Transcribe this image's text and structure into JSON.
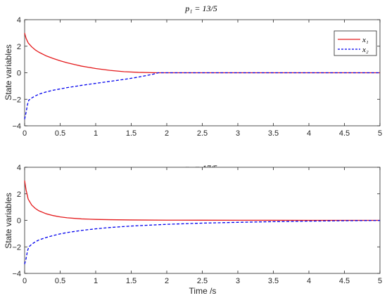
{
  "chart_data": [
    {
      "type": "line",
      "title": "p₁ = 13/5",
      "xlabel": "",
      "ylabel": "State variables",
      "xlim": [
        0,
        5
      ],
      "ylim": [
        -4,
        4
      ],
      "xticks": [
        "0",
        "0.5",
        "1",
        "1.5",
        "2",
        "2.5",
        "3",
        "3.5",
        "4",
        "4.5",
        "5"
      ],
      "yticks": [
        "-4",
        "-2",
        "0",
        "2",
        "4"
      ],
      "grid": false,
      "legend": {
        "position": "top-right",
        "entries": [
          "x₁",
          "x₂"
        ]
      },
      "series": [
        {
          "name": "x₁",
          "color": "#e41a1c",
          "dash": "solid",
          "x": [
            0,
            0.02,
            0.05,
            0.1,
            0.15,
            0.2,
            0.3,
            0.4,
            0.5,
            0.6,
            0.7,
            0.8,
            1.0,
            1.2,
            1.4,
            1.6,
            1.8,
            1.88,
            2.0,
            3.0,
            4.0,
            5.0
          ],
          "y": [
            3.0,
            2.6,
            2.25,
            1.95,
            1.72,
            1.55,
            1.28,
            1.08,
            0.9,
            0.75,
            0.62,
            0.5,
            0.32,
            0.18,
            0.08,
            0.03,
            0.005,
            0.0,
            0.0,
            0.0,
            0.0,
            0.0
          ]
        },
        {
          "name": "x₂",
          "color": "#0000ee",
          "dash": "dashed",
          "x": [
            0,
            0.02,
            0.04,
            0.06,
            0.08,
            0.1,
            0.15,
            0.2,
            0.3,
            0.4,
            0.5,
            0.6,
            0.8,
            1.0,
            1.2,
            1.4,
            1.6,
            1.8,
            1.88,
            2.0,
            3.0,
            4.0,
            5.0
          ],
          "y": [
            -3.5,
            -3.0,
            -2.4,
            -2.05,
            -2.0,
            -1.9,
            -1.75,
            -1.62,
            -1.45,
            -1.32,
            -1.22,
            -1.12,
            -0.95,
            -0.8,
            -0.65,
            -0.5,
            -0.33,
            -0.12,
            0.0,
            0.0,
            0.0,
            0.0,
            0.0
          ]
        }
      ]
    },
    {
      "type": "line",
      "title": "p₁ = 17/5",
      "xlabel": "Time /s",
      "ylabel": "State variables",
      "xlim": [
        0,
        5
      ],
      "ylim": [
        -4,
        4
      ],
      "xticks": [
        "0",
        "0.5",
        "1",
        "1.5",
        "2",
        "2.5",
        "3",
        "3.5",
        "4",
        "4.5",
        "5"
      ],
      "yticks": [
        "-4",
        "-2",
        "0",
        "2",
        "4"
      ],
      "grid": false,
      "series": [
        {
          "name": "x₁",
          "color": "#e41a1c",
          "dash": "solid",
          "x": [
            0,
            0.02,
            0.05,
            0.1,
            0.15,
            0.2,
            0.3,
            0.4,
            0.5,
            0.6,
            0.8,
            1.0,
            1.2,
            1.5,
            2.0,
            2.5,
            3.0,
            4.0,
            5.0
          ],
          "y": [
            3.0,
            2.3,
            1.6,
            1.15,
            0.9,
            0.72,
            0.5,
            0.36,
            0.26,
            0.19,
            0.11,
            0.07,
            0.05,
            0.03,
            0.015,
            0.01,
            0.005,
            0.0,
            0.0
          ]
        },
        {
          "name": "x₂",
          "color": "#0000ee",
          "dash": "dashed",
          "x": [
            0,
            0.02,
            0.04,
            0.06,
            0.08,
            0.1,
            0.15,
            0.2,
            0.3,
            0.4,
            0.5,
            0.6,
            0.8,
            1.0,
            1.2,
            1.5,
            2.0,
            2.5,
            3.0,
            3.5,
            4.0,
            4.5,
            5.0
          ],
          "y": [
            -3.3,
            -2.9,
            -2.3,
            -2.0,
            -1.9,
            -1.8,
            -1.62,
            -1.48,
            -1.3,
            -1.15,
            -1.02,
            -0.92,
            -0.76,
            -0.64,
            -0.54,
            -0.43,
            -0.3,
            -0.21,
            -0.15,
            -0.1,
            -0.06,
            -0.03,
            -0.01
          ]
        }
      ]
    }
  ]
}
